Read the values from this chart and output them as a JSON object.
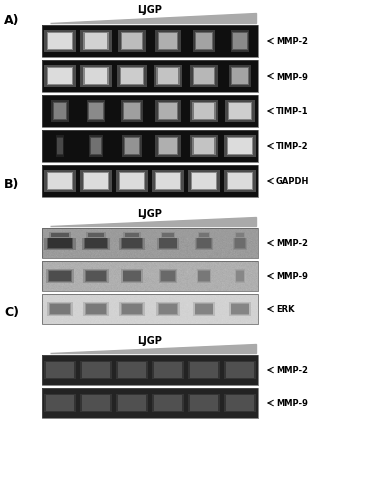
{
  "title_ljgp": "LJGP",
  "section_A_label": "A)",
  "section_B_label": "B)",
  "section_C_label": "C)",
  "panel_A_rows": [
    "MMP-2",
    "MMP-9",
    "TIMP-1",
    "TIMP-2",
    "GAPDH"
  ],
  "panel_B_rows": [
    "MMP-2",
    "MMP-9",
    "ERK"
  ],
  "panel_C_rows": [
    "MMP-2",
    "MMP-9"
  ],
  "num_lanes": 6,
  "bg_color": "#ffffff",
  "gel_bg_dark": 15,
  "band_brightness": 220,
  "wb_mmp2_bg": 155,
  "wb_mmp9_bg": 175,
  "erk_bg": 210,
  "zymo_bg": 35,
  "zymo_band": 80,
  "label_fontsize": 6,
  "title_fontsize": 7,
  "section_label_fontsize": 9,
  "arrow_lw": 0.9,
  "panel_A_band_data": [
    [
      1.0,
      0.95,
      0.85,
      0.78,
      0.72,
      0.6
    ],
    [
      1.0,
      0.98,
      0.92,
      0.88,
      0.82,
      0.72
    ],
    [
      0.55,
      0.6,
      0.7,
      0.78,
      0.88,
      0.93
    ],
    [
      0.28,
      0.48,
      0.65,
      0.78,
      0.88,
      1.0
    ],
    [
      1.0,
      1.0,
      1.0,
      1.0,
      1.0,
      1.0
    ]
  ],
  "panel_B_band_data": [
    [
      1.0,
      0.92,
      0.82,
      0.7,
      0.58,
      0.45
    ],
    [
      0.85,
      0.78,
      0.7,
      0.6,
      0.48,
      0.35
    ],
    [
      0.82,
      0.8,
      0.78,
      0.75,
      0.72,
      0.7
    ]
  ],
  "panel_C_band_data": [
    [
      0.85,
      0.8,
      0.75,
      0.7,
      0.62,
      0.55
    ],
    [
      0.8,
      0.75,
      0.72,
      0.68,
      0.62,
      0.55
    ]
  ]
}
